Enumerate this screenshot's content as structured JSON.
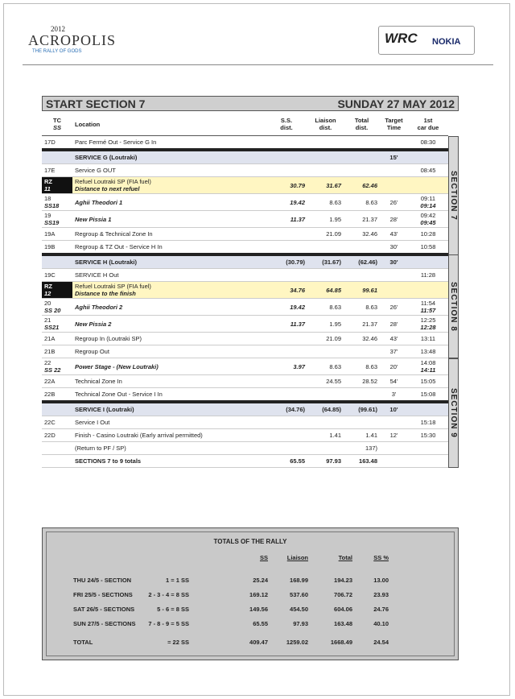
{
  "header": {
    "year": "2012",
    "logo": "ACROPOLIS",
    "tagline": "THE RALLY OF GODS",
    "wrc": "WRC",
    "sponsor": "NOKIA"
  },
  "section_header": {
    "title": "START SECTION 7",
    "date": "SUNDAY 27 MAY 2012"
  },
  "table": {
    "columns": [
      [
        "TC",
        "SS"
      ],
      [
        "Location"
      ],
      [
        "S.S.",
        "dist."
      ],
      [
        "Liaison",
        "dist."
      ],
      [
        "Total",
        "dist."
      ],
      [
        "Target",
        "Time"
      ],
      [
        "1st",
        "car due"
      ]
    ],
    "rows": [
      {
        "kind": "normal",
        "cells": [
          "17D",
          "Parc Fermé Out - Service G In",
          null,
          null,
          null,
          null,
          "08:30"
        ]
      },
      {
        "kind": "service",
        "cells": [
          null,
          "SERVICE G (Loutraki)",
          null,
          null,
          null,
          "15'",
          null
        ]
      },
      {
        "kind": "normal",
        "cells": [
          "17E",
          "Service G OUT",
          null,
          null,
          null,
          null,
          "08:45"
        ]
      },
      {
        "kind": "refuel",
        "cells": [
          [
            "RZ",
            "11"
          ],
          [
            "Refuel Loutraki SP (FIA fuel)",
            "Distance to next refuel"
          ],
          "30.79",
          "31.67",
          "62.46",
          null,
          null
        ]
      },
      {
        "kind": "stage",
        "cells": [
          [
            "18",
            "SS18"
          ],
          "Aghii Theodori 1",
          "19.42",
          "8.63",
          "8.63",
          "26'",
          [
            "09:11",
            "09:14"
          ]
        ]
      },
      {
        "kind": "stage",
        "cells": [
          [
            "19",
            "SS19"
          ],
          "New Pissia 1",
          "11.37",
          "1.95",
          "21.37",
          "28'",
          [
            "09:42",
            "09:45"
          ]
        ]
      },
      {
        "kind": "normal",
        "cells": [
          "19A",
          "Regroup & Technical Zone In",
          null,
          "21.09",
          "32.46",
          "43'",
          "10:28"
        ]
      },
      {
        "kind": "normal",
        "cells": [
          "19B",
          "Regroup & TZ Out - Service H In",
          null,
          null,
          null,
          "30'",
          "10:58"
        ]
      },
      {
        "kind": "service",
        "cells": [
          null,
          "SERVICE H (Loutraki)",
          "(30.79)",
          "(31.67)",
          "(62.46)",
          "30'",
          null
        ]
      },
      {
        "kind": "normal",
        "cells": [
          "19C",
          "SERVICE H Out",
          null,
          null,
          null,
          null,
          "11:28"
        ]
      },
      {
        "kind": "refuel",
        "cells": [
          [
            "RZ",
            "12"
          ],
          [
            "Refuel Loutraki SP (FIA fuel)",
            "Distance to the finish"
          ],
          "34.76",
          "64.85",
          "99.61",
          null,
          null
        ]
      },
      {
        "kind": "stage",
        "cells": [
          [
            "20",
            "SS 20"
          ],
          "Aghii Theodori 2",
          "19.42",
          "8.63",
          "8.63",
          "26'",
          [
            "11:54",
            "11:57"
          ]
        ]
      },
      {
        "kind": "stage",
        "cells": [
          [
            "21",
            "SS21"
          ],
          "New Pissia 2",
          "11.37",
          "1.95",
          "21.37",
          "28'",
          [
            "12:25",
            "12:28"
          ]
        ]
      },
      {
        "kind": "normal",
        "cells": [
          "21A",
          "Regroup In (Loutraki SP)",
          null,
          "21.09",
          "32.46",
          "43'",
          "13:11"
        ]
      },
      {
        "kind": "normal",
        "cells": [
          "21B",
          "Regroup Out",
          null,
          null,
          null,
          "37'",
          "13:48"
        ]
      },
      {
        "kind": "stage",
        "cells": [
          [
            "22",
            "SS 22"
          ],
          "Power Stage - (New Loutraki)",
          "3.97",
          "8.63",
          "8.63",
          "20'",
          [
            "14:08",
            "14:11"
          ]
        ]
      },
      {
        "kind": "normal",
        "cells": [
          "22A",
          "Technical Zone In",
          null,
          "24.55",
          "28.52",
          "54'",
          "15:05"
        ]
      },
      {
        "kind": "normal",
        "cells": [
          "22B",
          "Technical Zone Out - Service I In",
          null,
          null,
          null,
          "3'",
          "15:08"
        ]
      },
      {
        "kind": "service",
        "cells": [
          null,
          "SERVICE I (Loutraki)",
          "(34.76)",
          "(64.85)",
          "(99.61)",
          "10'",
          null
        ]
      },
      {
        "kind": "normal",
        "cells": [
          "22C",
          "Service I Out",
          null,
          null,
          null,
          null,
          "15:18"
        ]
      },
      {
        "kind": "normal",
        "cells": [
          "22D",
          "Finish - Casino Loutraki (Early arrival permitted)",
          null,
          "1.41",
          "1.41",
          "12'",
          "15:30"
        ]
      },
      {
        "kind": "normal",
        "cells": [
          null,
          "(Return to PF / SP)",
          null,
          null,
          "137)",
          null,
          null
        ]
      },
      {
        "kind": "total",
        "cells": [
          null,
          "SECTIONS 7 to 9 totals",
          "65.55",
          "97.93",
          "163.48",
          null,
          null
        ]
      }
    ],
    "sections": [
      "SECTION 7",
      "SECTION 8",
      "SECTION 9"
    ]
  },
  "totals": {
    "title": "TOTALS OF THE RALLY",
    "columns": [
      "SS",
      "Liaison",
      "Total",
      "SS %"
    ],
    "rows": [
      [
        "THU 24/5 - SECTION",
        "1 = 1 SS",
        "25.24",
        "168.99",
        "194.23",
        "13.00"
      ],
      [
        "FRI 25/5 - SECTIONS",
        "2 - 3 - 4 = 8 SS",
        "169.12",
        "537.60",
        "706.72",
        "23.93"
      ],
      [
        "SAT 26/5 - SECTIONS",
        "5 - 6 = 8 SS",
        "149.56",
        "454.50",
        "604.06",
        "24.76"
      ],
      [
        "SUN 27/5 - SECTIONS",
        "7 - 8 - 9 = 5 SS",
        "65.55",
        "97.93",
        "163.48",
        "40.10"
      ],
      [
        "TOTAL",
        "= 22 SS",
        "409.47",
        "1259.02",
        "1668.49",
        "24.54"
      ]
    ]
  }
}
